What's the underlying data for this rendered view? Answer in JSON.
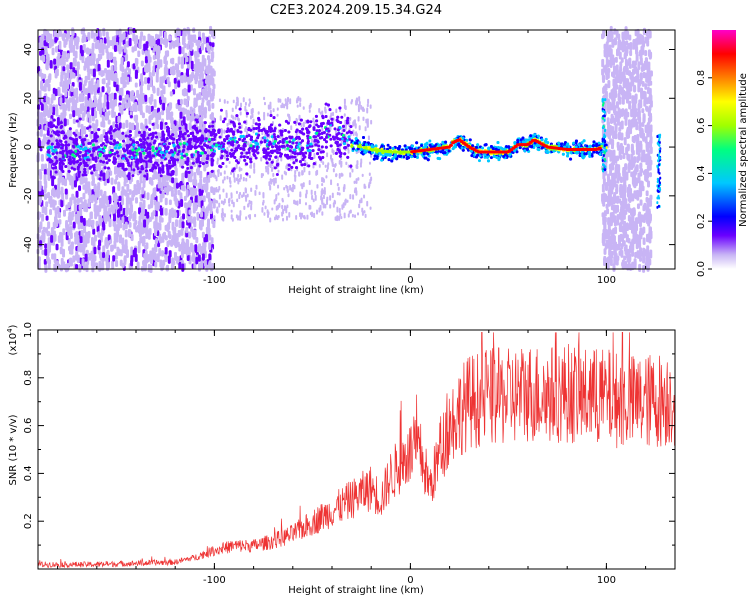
{
  "title": "C2E3.2024.209.15.34.G24",
  "chart_data": [
    {
      "type": "heatmap",
      "name": "spectrogram",
      "xlabel": "Height of straight line (km)",
      "ylabel": "Frequency (Hz)",
      "xlim": [
        -190,
        135
      ],
      "ylim": [
        -50,
        48
      ],
      "xticks": [
        -100,
        0,
        100
      ],
      "yticks": [
        -40,
        -20,
        0,
        20,
        40
      ],
      "colorbar": {
        "label": "Normalized spectral amplitude",
        "range": [
          0,
          1
        ],
        "ticks": [
          0.0,
          0.2,
          0.4,
          0.6,
          0.8
        ],
        "colormap": [
          "#ffffff",
          "#c8b4f5",
          "#6a00ff",
          "#0000ff",
          "#00c8ff",
          "#00ff80",
          "#a0ff00",
          "#ffff00",
          "#ff8000",
          "#ff0000",
          "#ff00c8"
        ]
      },
      "ridge": [
        {
          "x": -170,
          "y": -2
        },
        {
          "x": -150,
          "y": -2
        },
        {
          "x": -130,
          "y": -2
        },
        {
          "x": -110,
          "y": -1
        },
        {
          "x": -95,
          "y": 2
        },
        {
          "x": -80,
          "y": 3
        },
        {
          "x": -65,
          "y": 2
        },
        {
          "x": -55,
          "y": 0
        },
        {
          "x": -45,
          "y": 4
        },
        {
          "x": -40,
          "y": 7
        },
        {
          "x": -35,
          "y": 5
        },
        {
          "x": -30,
          "y": 1
        },
        {
          "x": -20,
          "y": -1
        },
        {
          "x": -10,
          "y": -2
        },
        {
          "x": 0,
          "y": -2
        },
        {
          "x": 10,
          "y": -1
        },
        {
          "x": 20,
          "y": 0
        },
        {
          "x": 22,
          "y": 2
        },
        {
          "x": 25,
          "y": 3
        },
        {
          "x": 30,
          "y": 0
        },
        {
          "x": 35,
          "y": -2
        },
        {
          "x": 50,
          "y": -2
        },
        {
          "x": 55,
          "y": 1
        },
        {
          "x": 60,
          "y": 1
        },
        {
          "x": 63,
          "y": 3
        },
        {
          "x": 70,
          "y": 0
        },
        {
          "x": 80,
          "y": -1
        },
        {
          "x": 95,
          "y": -1
        },
        {
          "x": 98,
          "y": 0
        }
      ]
    },
    {
      "type": "line",
      "name": "snr",
      "xlabel": "Height of straight line (km)",
      "ylabel": "SNR (10 * v/v)",
      "yscale_label": "(x10",
      "yscale_exp": "4",
      "xlim": [
        -190,
        135
      ],
      "ylim": [
        0,
        1.0
      ],
      "xticks": [
        -100,
        0,
        100
      ],
      "yticks": [
        0.2,
        0.4,
        0.6,
        0.8,
        1.0
      ],
      "color": "#ee3333",
      "envelope": [
        {
          "x": -190,
          "y": 0.02
        },
        {
          "x": -160,
          "y": 0.02
        },
        {
          "x": -140,
          "y": 0.025
        },
        {
          "x": -120,
          "y": 0.03
        },
        {
          "x": -110,
          "y": 0.05
        },
        {
          "x": -100,
          "y": 0.08
        },
        {
          "x": -90,
          "y": 0.1
        },
        {
          "x": -80,
          "y": 0.1
        },
        {
          "x": -70,
          "y": 0.12
        },
        {
          "x": -60,
          "y": 0.15
        },
        {
          "x": -50,
          "y": 0.2
        },
        {
          "x": -40,
          "y": 0.25
        },
        {
          "x": -30,
          "y": 0.3
        },
        {
          "x": -20,
          "y": 0.35
        },
        {
          "x": -15,
          "y": 0.3
        },
        {
          "x": -10,
          "y": 0.4
        },
        {
          "x": -5,
          "y": 0.45
        },
        {
          "x": 0,
          "y": 0.5
        },
        {
          "x": 5,
          "y": 0.5
        },
        {
          "x": 10,
          "y": 0.35
        },
        {
          "x": 15,
          "y": 0.5
        },
        {
          "x": 20,
          "y": 0.62
        },
        {
          "x": 25,
          "y": 0.68
        },
        {
          "x": 30,
          "y": 0.72
        },
        {
          "x": 40,
          "y": 0.74
        },
        {
          "x": 50,
          "y": 0.74
        },
        {
          "x": 60,
          "y": 0.76
        },
        {
          "x": 70,
          "y": 0.75
        },
        {
          "x": 80,
          "y": 0.76
        },
        {
          "x": 90,
          "y": 0.74
        },
        {
          "x": 100,
          "y": 0.74
        },
        {
          "x": 110,
          "y": 0.72
        },
        {
          "x": 120,
          "y": 0.72
        },
        {
          "x": 135,
          "y": 0.74
        }
      ]
    }
  ]
}
